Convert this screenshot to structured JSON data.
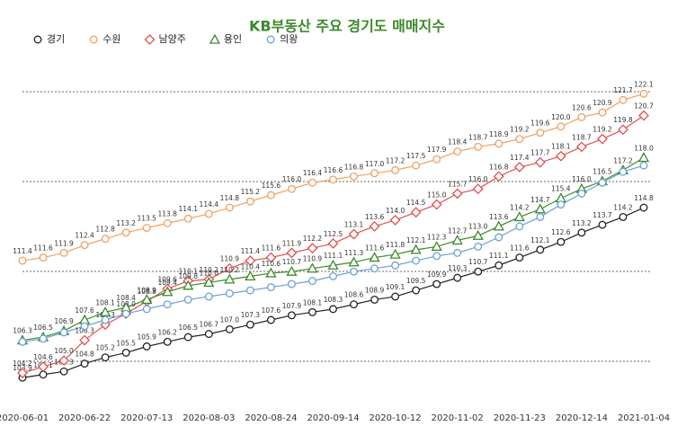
{
  "chart_data": {
    "type": "line",
    "title": "KB부동산 주요 경기도 매매지수",
    "categories": [
      "2020-06-01",
      null,
      null,
      "2020-06-22",
      null,
      null,
      "2020-07-13",
      null,
      null,
      "2020-08-03",
      null,
      null,
      "2020-08-24",
      null,
      null,
      "2020-09-14",
      null,
      null,
      "2020-10-12",
      null,
      null,
      "2020-11-02",
      null,
      null,
      "2020-11-23",
      null,
      null,
      "2020-12-14",
      null,
      null,
      "2021-01-04"
    ],
    "ylim": [
      102.3,
      123.5
    ],
    "grid": true,
    "legend": "top-left",
    "series": [
      {
        "name": "경기",
        "color": "#222222",
        "marker": "circle",
        "values": [
          103.9,
          104.1,
          104.3,
          104.8,
          105.2,
          105.5,
          105.9,
          106.2,
          106.5,
          106.7,
          107.0,
          107.3,
          107.6,
          107.9,
          108.1,
          108.3,
          108.6,
          108.9,
          109.1,
          109.5,
          109.9,
          110.3,
          110.7,
          111.1,
          111.6,
          112.1,
          112.6,
          113.2,
          113.7,
          114.2,
          114.8
        ],
        "value_labels": [
          "103.9",
          "104.1",
          "104.3",
          "104.8",
          "105.2",
          "105.5",
          "105.9",
          "106.2",
          "106.5",
          "106.7",
          "107.0",
          "107.3",
          "107.6",
          "107.9",
          "108.1",
          "108.3",
          "108.6",
          "108.9",
          "109.1",
          "109.5",
          "109.9",
          "110.3",
          "110.7",
          "111.1",
          "111.6",
          "112.1",
          "112.6",
          "113.2",
          "113.7",
          "114.2",
          "114.8"
        ]
      },
      {
        "name": "수원",
        "color": "#f0a060",
        "marker": "circle",
        "values": [
          111.4,
          111.6,
          111.9,
          112.4,
          112.8,
          113.2,
          113.5,
          113.8,
          114.1,
          114.4,
          114.8,
          115.2,
          115.6,
          116.0,
          116.4,
          116.6,
          116.8,
          117.0,
          117.2,
          117.5,
          117.9,
          118.4,
          118.7,
          118.9,
          119.2,
          119.6,
          120.0,
          120.6,
          120.9,
          121.7,
          122.1
        ],
        "value_labels": [
          "111.4",
          "111.6",
          "111.9",
          "112.4",
          "112.8",
          "113.2",
          "113.5",
          "113.8",
          "114.1",
          "114.4",
          "114.8",
          "115.2",
          "115.6",
          "116.0",
          "116.4",
          "116.6",
          "116.8",
          "117.0",
          "117.2",
          "117.5",
          "117.9",
          "118.4",
          "118.7",
          "118.9",
          "119.2",
          "119.6",
          "120.0",
          "120.6",
          "120.9",
          "121.7",
          "122.1"
        ]
      },
      {
        "name": "남양주",
        "color": "#e05050",
        "marker": "diamond",
        "values": [
          104.2,
          104.6,
          105.0,
          106.3,
          107.3,
          108.0,
          108.8,
          109.6,
          110.1,
          110.2,
          110.9,
          111.4,
          111.6,
          111.9,
          112.2,
          112.5,
          113.1,
          113.6,
          114.0,
          114.5,
          115.0,
          115.7,
          116.0,
          116.8,
          117.4,
          117.7,
          118.1,
          118.7,
          119.2,
          119.8,
          120.7
        ],
        "value_labels": [
          "104.2",
          "104.6",
          "105.0",
          "106.3",
          "107.3",
          "108.0",
          "108.8",
          "109.6",
          "110.1",
          "110.2",
          "110.9",
          "111.4",
          "111.6",
          "111.9",
          "112.2",
          "112.5",
          "113.1",
          "113.6",
          "114.0",
          "114.5",
          "115.0",
          "115.7",
          "116.0",
          "116.8",
          "117.4",
          "117.7",
          "118.1",
          "118.7",
          "119.2",
          "119.8",
          "120.7"
        ]
      },
      {
        "name": "용인",
        "color": "#3a8a2a",
        "marker": "triangle",
        "values": [
          106.3,
          106.5,
          106.9,
          107.6,
          108.1,
          108.4,
          108.9,
          109.4,
          109.8,
          110.0,
          110.2,
          110.4,
          110.6,
          110.7,
          110.9,
          111.1,
          111.3,
          111.6,
          111.8,
          112.1,
          112.3,
          112.7,
          113.0,
          113.6,
          114.2,
          114.7,
          115.4,
          116.0,
          116.5,
          117.2,
          118.0
        ],
        "value_labels": [
          "106.3",
          "106.5",
          "106.9",
          "107.6",
          "108.1",
          "108.4",
          "108.9",
          "109.4",
          "109.8",
          "110.0",
          "110.2",
          "110.4",
          "110.6",
          "110.7",
          "110.9",
          "111.1",
          "111.3",
          "111.6",
          "111.8",
          "112.1",
          "112.3",
          "112.7",
          "113.0",
          "113.6",
          "114.2",
          "114.7",
          "115.4",
          "116.0",
          "116.5",
          "117.2",
          "118.0"
        ]
      },
      {
        "name": "의왕",
        "color": "#6aa0d8",
        "marker": "circle",
        "values": [
          106.2,
          106.4,
          106.8,
          107.2,
          107.6,
          108.0,
          108.3,
          108.6,
          108.9,
          109.1,
          109.3,
          109.5,
          109.7,
          109.9,
          110.1,
          110.4,
          110.7,
          110.9,
          111.1,
          111.4,
          111.7,
          111.9,
          112.3,
          112.9,
          113.6,
          114.2,
          115.0,
          115.7,
          116.4,
          117.1,
          117.5
        ]
      }
    ]
  }
}
